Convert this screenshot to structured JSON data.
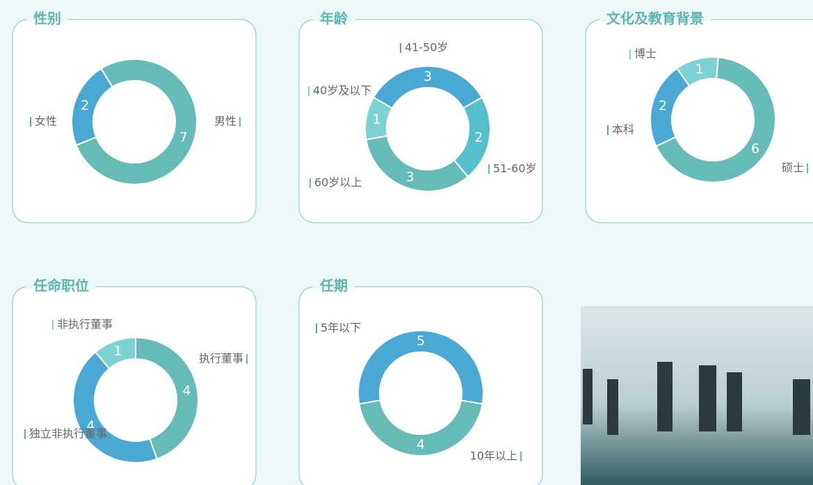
{
  "chart_data": [
    {
      "type": "pie",
      "title": "性别",
      "categories": [
        "男性",
        "女性"
      ],
      "values": [
        7,
        2
      ],
      "colors": [
        "#66bbb8",
        "#4aa8d4"
      ]
    },
    {
      "type": "pie",
      "title": "年龄",
      "categories": [
        "41-50岁",
        "51-60岁",
        "60岁以上",
        "40岁及以下"
      ],
      "values": [
        3,
        2,
        3,
        1
      ],
      "colors": [
        "#4aa8d4",
        "#55c0cc",
        "#66bbb8",
        "#7dd3d3"
      ]
    },
    {
      "type": "pie",
      "title": "文化及教育背景",
      "categories": [
        "博士",
        "硕士",
        "本科"
      ],
      "values": [
        1,
        6,
        2
      ],
      "colors": [
        "#7dd3d3",
        "#66bbb8",
        "#4aa8d4"
      ]
    },
    {
      "type": "pie",
      "title": "任命职位",
      "categories": [
        "非执行董事",
        "执行董事",
        "独立非执行董事"
      ],
      "values": [
        1,
        4,
        4
      ],
      "colors": [
        "#7dd3d3",
        "#66bbb8",
        "#4aa8d4"
      ]
    },
    {
      "type": "pie",
      "title": "任期",
      "categories": [
        "5年以下",
        "10年以上"
      ],
      "values": [
        5,
        4
      ],
      "colors": [
        "#4aa8d4",
        "#66bbb8"
      ]
    }
  ]
}
